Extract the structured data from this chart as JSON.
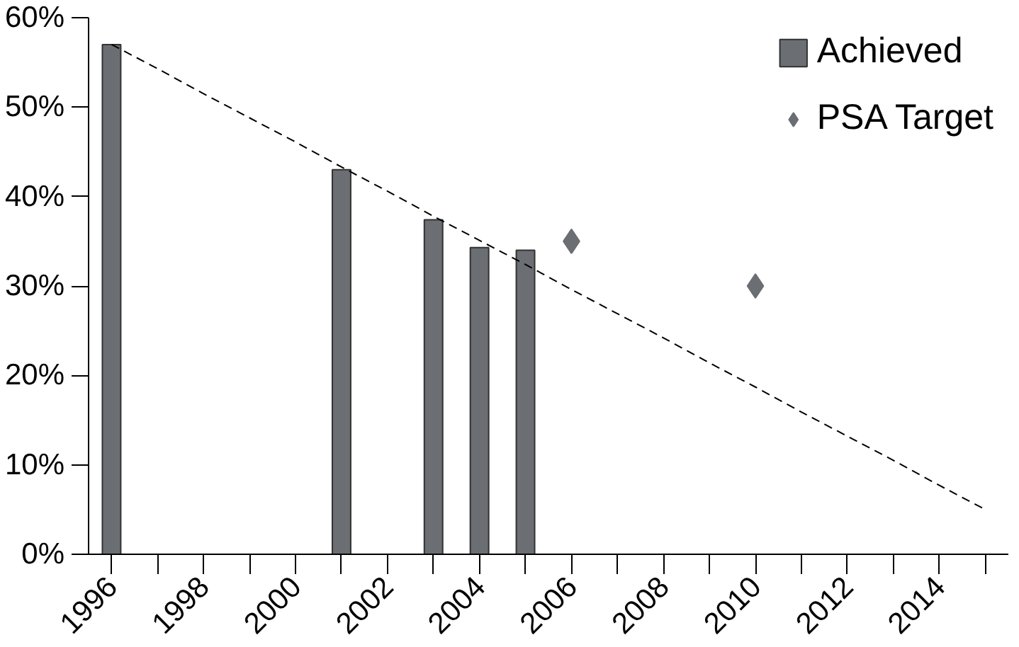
{
  "chart_data": {
    "type": "bar",
    "categories": [
      "1996",
      null,
      "1998",
      null,
      "2000",
      null,
      "2002",
      null,
      "2004",
      null,
      "2006",
      null,
      "2008",
      null,
      "2010",
      null,
      "2012",
      null,
      "2014",
      null
    ],
    "series": [
      {
        "name": "Achieved",
        "color": "#6b6e72",
        "values": [
          57,
          null,
          null,
          null,
          null,
          43,
          null,
          37.4,
          34.3,
          34,
          null,
          null,
          null,
          null,
          null,
          null,
          null,
          null,
          null,
          null
        ]
      },
      {
        "name": "PSA Target",
        "type": "scatter",
        "marker": "diamond",
        "color": "#6b6e72",
        "values": [
          null,
          null,
          null,
          null,
          null,
          null,
          null,
          null,
          null,
          null,
          35,
          null,
          null,
          null,
          30,
          null,
          null,
          null,
          null,
          null
        ]
      },
      {
        "type": "line",
        "line_style": "dashed",
        "color": "#000000",
        "values": [
          57,
          54.3,
          51.5,
          48.8,
          46.1,
          43.3,
          40.6,
          37.8,
          35.1,
          32.4,
          29.6,
          26.9,
          24.2,
          21.4,
          18.7,
          15.9,
          13.2,
          10.5,
          7.7,
          5.0
        ]
      }
    ],
    "ylim": [
      0,
      60
    ],
    "yticks": [
      {
        "value": 0,
        "label": "0%"
      },
      {
        "value": 10,
        "label": "10%"
      },
      {
        "value": 20,
        "label": "20%"
      },
      {
        "value": 30,
        "label": "30%"
      },
      {
        "value": 40,
        "label": "40%"
      },
      {
        "value": 50,
        "label": "50%"
      },
      {
        "value": 60,
        "label": "60%"
      }
    ],
    "grid": false,
    "legend": "top right"
  }
}
